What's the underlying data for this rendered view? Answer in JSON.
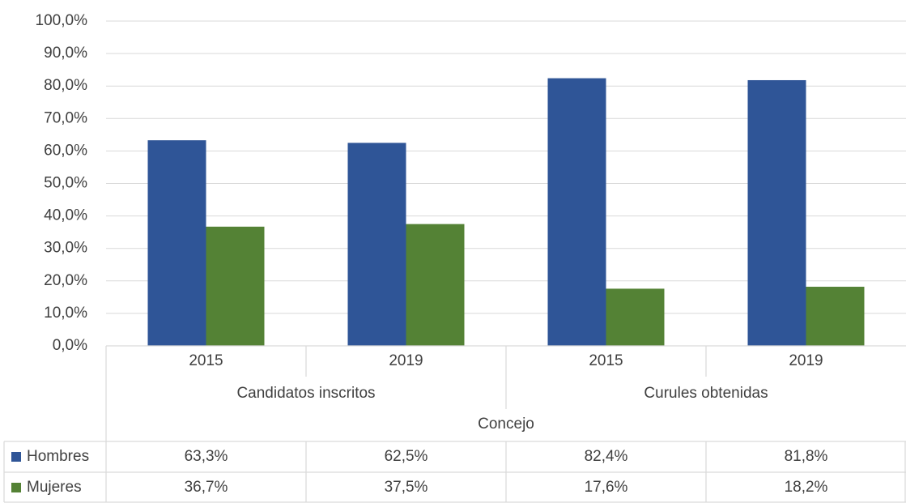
{
  "chart_data": {
    "type": "bar",
    "categories": [
      "2015",
      "2019",
      "2015",
      "2019"
    ],
    "groups": [
      "Candidatos inscritos",
      "Curules obtenidas"
    ],
    "axis_title": "Concejo",
    "series": [
      {
        "name": "Hombres",
        "color": "#2f5597",
        "values": [
          63.3,
          62.5,
          82.4,
          81.8
        ],
        "value_labels": [
          "63,3%",
          "62,5%",
          "82,4%",
          "81,8%"
        ]
      },
      {
        "name": "Mujeres",
        "color": "#548235",
        "values": [
          36.7,
          37.5,
          17.6,
          18.2
        ],
        "value_labels": [
          "36,7%",
          "37,5%",
          "17,6%",
          "18,2%"
        ]
      }
    ],
    "ylim": [
      0,
      100
    ],
    "yticks": [
      {
        "value": 0,
        "label": "0,0%"
      },
      {
        "value": 10,
        "label": "10,0%"
      },
      {
        "value": 20,
        "label": "20,0%"
      },
      {
        "value": 30,
        "label": "30,0%"
      },
      {
        "value": 40,
        "label": "40,0%"
      },
      {
        "value": 50,
        "label": "50,0%"
      },
      {
        "value": 60,
        "label": "60,0%"
      },
      {
        "value": 70,
        "label": "70,0%"
      },
      {
        "value": 80,
        "label": "80,0%"
      },
      {
        "value": 90,
        "label": "90,0%"
      },
      {
        "value": 100,
        "label": "100,0%"
      }
    ],
    "grid": true
  }
}
